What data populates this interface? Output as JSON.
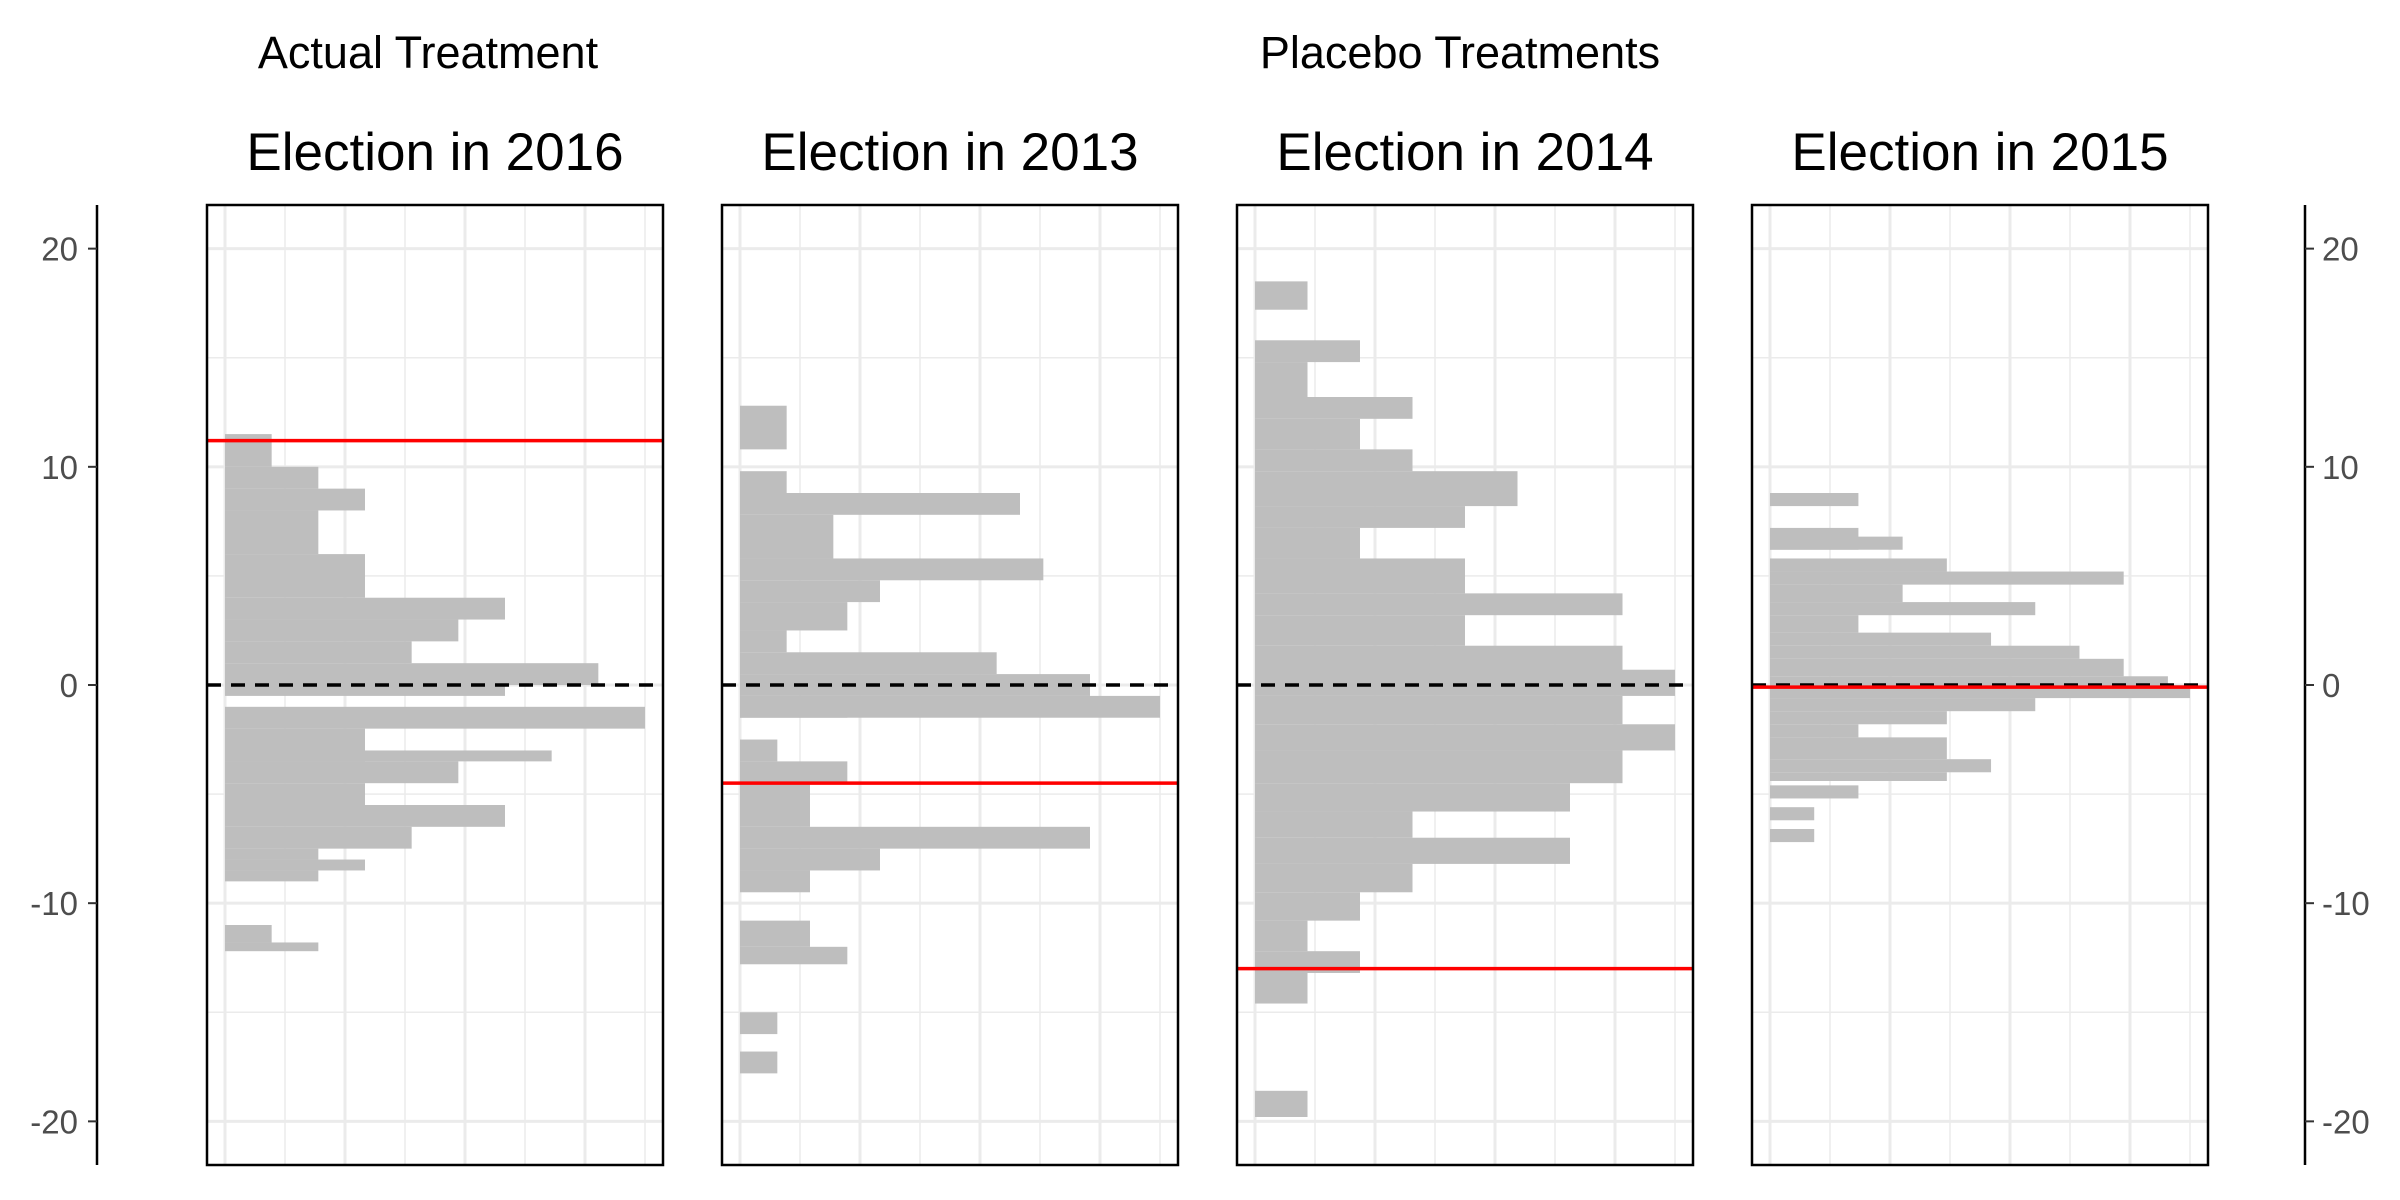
{
  "group_labels": {
    "actual": "Actual Treatment",
    "placebo": "Placebo Treatments"
  },
  "colors": {
    "bars": "#bebebe",
    "estimate_line": "#ff0000",
    "zero_line": "#000000",
    "grid": "#ebebeb",
    "frame": "#000000"
  },
  "chart_data": {
    "type": "bar",
    "orientation": "horizontal",
    "ylim": [
      -22,
      22
    ],
    "yticks": [
      -20,
      -10,
      0,
      10,
      20
    ],
    "xlim": [
      0,
      1
    ],
    "grid": true,
    "zero_reference_line": {
      "value": 0,
      "style": "dashed"
    },
    "panels": [
      {
        "title": "Election in 2016",
        "group": "actual",
        "estimate": 11.2,
        "bins": [
          {
            "y0": 10.0,
            "y1": 11.5,
            "count": 1
          },
          {
            "y0": 9.0,
            "y1": 10.0,
            "count": 2
          },
          {
            "y0": 8.0,
            "y1": 9.0,
            "count": 3
          },
          {
            "y0": 6.0,
            "y1": 8.0,
            "count": 2
          },
          {
            "y0": 4.0,
            "y1": 6.0,
            "count": 3
          },
          {
            "y0": 3.0,
            "y1": 4.0,
            "count": 6
          },
          {
            "y0": 2.0,
            "y1": 3.0,
            "count": 5
          },
          {
            "y0": 1.0,
            "y1": 2.0,
            "count": 4
          },
          {
            "y0": 0.0,
            "y1": 1.0,
            "count": 8
          },
          {
            "y0": -0.5,
            "y1": 0.0,
            "count": 6
          },
          {
            "y0": -2.0,
            "y1": -1.0,
            "count": 9
          },
          {
            "y0": -3.5,
            "y1": -2.0,
            "count": 3
          },
          {
            "y0": -3.0,
            "y1": -3.5,
            "count": 7
          },
          {
            "y0": -4.5,
            "y1": -3.5,
            "count": 5
          },
          {
            "y0": -5.5,
            "y1": -4.5,
            "count": 3
          },
          {
            "y0": -6.5,
            "y1": -5.5,
            "count": 6
          },
          {
            "y0": -7.5,
            "y1": -6.5,
            "count": 4
          },
          {
            "y0": -8.0,
            "y1": -7.5,
            "count": 2
          },
          {
            "y0": -8.5,
            "y1": -8.0,
            "count": 3
          },
          {
            "y0": -9.0,
            "y1": -8.5,
            "count": 2
          },
          {
            "y0": -11.8,
            "y1": -11.0,
            "count": 1
          },
          {
            "y0": -12.2,
            "y1": -11.8,
            "count": 2
          }
        ]
      },
      {
        "title": "Election in 2013",
        "group": "placebo",
        "estimate": -4.5,
        "bins": [
          {
            "y0": 10.8,
            "y1": 12.8,
            "count": 1
          },
          {
            "y0": 8.8,
            "y1": 9.8,
            "count": 1
          },
          {
            "y0": 7.8,
            "y1": 8.8,
            "count": 6
          },
          {
            "y0": 5.8,
            "y1": 7.8,
            "count": 2
          },
          {
            "y0": 4.8,
            "y1": 5.8,
            "count": 6.5
          },
          {
            "y0": 3.8,
            "y1": 4.8,
            "count": 3
          },
          {
            "y0": 2.5,
            "y1": 3.8,
            "count": 2.3
          },
          {
            "y0": 1.5,
            "y1": 2.5,
            "count": 1
          },
          {
            "y0": 0.5,
            "y1": 1.5,
            "count": 5.5
          },
          {
            "y0": -0.5,
            "y1": 0.5,
            "count": 7.5
          },
          {
            "y0": -1.5,
            "y1": -0.5,
            "count": 9
          },
          {
            "y0": -1.5,
            "y1": -0.5,
            "count": 2.3
          },
          {
            "y0": -3.5,
            "y1": -2.5,
            "count": 0.8
          },
          {
            "y0": -4.5,
            "y1": -3.5,
            "count": 2.3
          },
          {
            "y0": -6.5,
            "y1": -4.5,
            "count": 1.5
          },
          {
            "y0": -7.5,
            "y1": -6.5,
            "count": 7.5
          },
          {
            "y0": -8.5,
            "y1": -7.5,
            "count": 3
          },
          {
            "y0": -9.5,
            "y1": -8.5,
            "count": 1.5
          },
          {
            "y0": -12.0,
            "y1": -10.8,
            "count": 1.5
          },
          {
            "y0": -12.8,
            "y1": -12.0,
            "count": 2.3
          },
          {
            "y0": -16.0,
            "y1": -15.0,
            "count": 0.8
          },
          {
            "y0": -17.8,
            "y1": -16.8,
            "count": 0.8
          }
        ]
      },
      {
        "title": "Election in 2014",
        "group": "placebo",
        "estimate": -13.0,
        "bins": [
          {
            "y0": 17.2,
            "y1": 18.5,
            "count": 1
          },
          {
            "y0": 14.8,
            "y1": 15.8,
            "count": 2
          },
          {
            "y0": 13.2,
            "y1": 14.8,
            "count": 1
          },
          {
            "y0": 12.2,
            "y1": 13.2,
            "count": 3
          },
          {
            "y0": 10.8,
            "y1": 12.2,
            "count": 2
          },
          {
            "y0": 9.8,
            "y1": 10.8,
            "count": 3
          },
          {
            "y0": 8.2,
            "y1": 9.8,
            "count": 5
          },
          {
            "y0": 7.2,
            "y1": 8.2,
            "count": 4
          },
          {
            "y0": 5.8,
            "y1": 7.2,
            "count": 2
          },
          {
            "y0": 4.2,
            "y1": 5.8,
            "count": 4
          },
          {
            "y0": 3.2,
            "y1": 4.2,
            "count": 7
          },
          {
            "y0": 1.8,
            "y1": 3.2,
            "count": 4
          },
          {
            "y0": 0.2,
            "y1": 1.8,
            "count": 7
          },
          {
            "y0": -0.5,
            "y1": 0.7,
            "count": 8
          },
          {
            "y0": -1.8,
            "y1": -0.5,
            "count": 7
          },
          {
            "y0": -3.0,
            "y1": -1.8,
            "count": 8
          },
          {
            "y0": -4.5,
            "y1": -3.0,
            "count": 7
          },
          {
            "y0": -5.8,
            "y1": -4.5,
            "count": 6
          },
          {
            "y0": -7.0,
            "y1": -5.8,
            "count": 3
          },
          {
            "y0": -8.2,
            "y1": -7.0,
            "count": 6
          },
          {
            "y0": -9.5,
            "y1": -8.2,
            "count": 3
          },
          {
            "y0": -10.8,
            "y1": -9.5,
            "count": 2
          },
          {
            "y0": -12.2,
            "y1": -10.8,
            "count": 1
          },
          {
            "y0": -13.2,
            "y1": -12.2,
            "count": 2
          },
          {
            "y0": -14.6,
            "y1": -13.2,
            "count": 1
          },
          {
            "y0": -19.8,
            "y1": -18.6,
            "count": 1
          }
        ]
      },
      {
        "title": "Election in 2015",
        "group": "placebo",
        "estimate": -0.1,
        "bins": [
          {
            "y0": 8.2,
            "y1": 8.8,
            "count": 2
          },
          {
            "y0": 6.2,
            "y1": 7.2,
            "count": 2
          },
          {
            "y0": 6.2,
            "y1": 6.8,
            "count": 3
          },
          {
            "y0": 5.2,
            "y1": 5.8,
            "count": 4
          },
          {
            "y0": 4.6,
            "y1": 5.2,
            "count": 8
          },
          {
            "y0": 3.8,
            "y1": 4.6,
            "count": 3
          },
          {
            "y0": 3.2,
            "y1": 3.8,
            "count": 6
          },
          {
            "y0": 2.4,
            "y1": 3.2,
            "count": 2
          },
          {
            "y0": 1.8,
            "y1": 2.4,
            "count": 5
          },
          {
            "y0": 1.2,
            "y1": 1.8,
            "count": 7
          },
          {
            "y0": 0.4,
            "y1": 1.2,
            "count": 8
          },
          {
            "y0": 0.0,
            "y1": 0.4,
            "count": 9
          },
          {
            "y0": -0.6,
            "y1": 0.0,
            "count": 9.5
          },
          {
            "y0": -1.2,
            "y1": -0.6,
            "count": 6
          },
          {
            "y0": -1.8,
            "y1": -1.2,
            "count": 4
          },
          {
            "y0": -2.4,
            "y1": -1.8,
            "count": 2
          },
          {
            "y0": -3.4,
            "y1": -2.4,
            "count": 4
          },
          {
            "y0": -4.0,
            "y1": -3.4,
            "count": 5
          },
          {
            "y0": -4.4,
            "y1": -4.0,
            "count": 4
          },
          {
            "y0": -5.2,
            "y1": -4.6,
            "count": 2
          },
          {
            "y0": -6.2,
            "y1": -5.6,
            "count": 1
          },
          {
            "y0": -7.2,
            "y1": -6.6,
            "count": 1
          }
        ]
      }
    ]
  }
}
